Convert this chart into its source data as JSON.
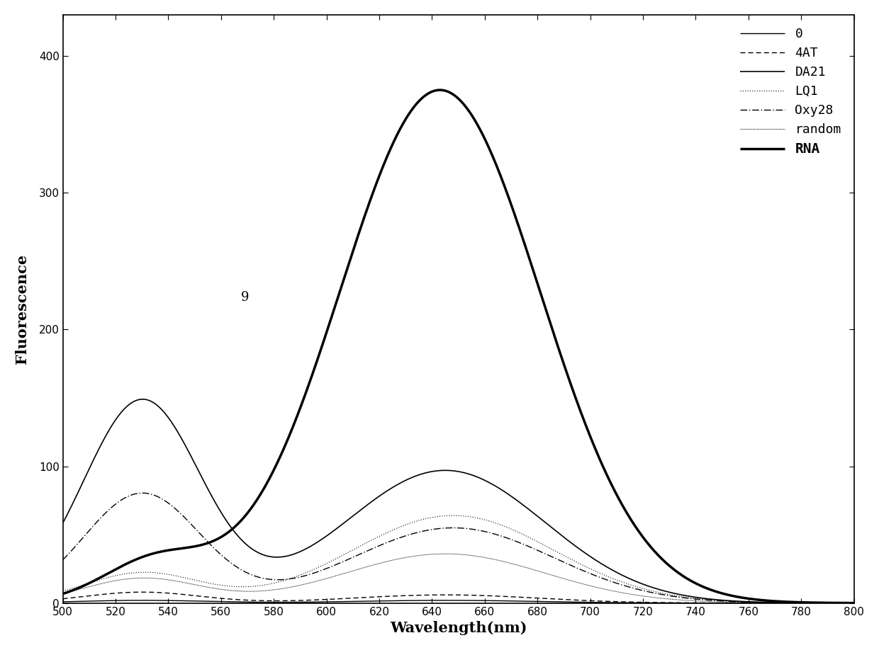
{
  "xlabel": "Wavelength(nm)",
  "ylabel": "Fluorescence",
  "xlim": [
    500,
    800
  ],
  "ylim": [
    0,
    430
  ],
  "xticks": [
    500,
    520,
    540,
    560,
    580,
    600,
    620,
    640,
    660,
    680,
    700,
    720,
    740,
    760,
    780,
    800
  ],
  "yticks": [
    0,
    100,
    200,
    300,
    400
  ],
  "peaks": {
    "0": [
      530,
      2,
      25,
      645,
      2,
      35
    ],
    "4AT": [
      530,
      8,
      22,
      645,
      6,
      35
    ],
    "DA21": [
      530,
      148,
      22,
      645,
      97,
      38
    ],
    "LQ1": [
      530,
      22,
      22,
      648,
      64,
      38
    ],
    "Oxy28": [
      530,
      80,
      22,
      648,
      55,
      38
    ],
    "random": [
      530,
      18,
      22,
      645,
      36,
      38
    ],
    "RNA": [
      535,
      30,
      20,
      643,
      375,
      38
    ]
  },
  "series": [
    {
      "label": "0",
      "lw": 1.0,
      "ls": "solid",
      "ls_tuple": [
        0,
        []
      ]
    },
    {
      "label": "4AT",
      "lw": 1.0,
      "ls": "dashed",
      "ls_tuple": [
        0,
        [
          5,
          3
        ]
      ]
    },
    {
      "label": "DA21",
      "lw": 1.2,
      "ls": "solid",
      "ls_tuple": [
        0,
        []
      ]
    },
    {
      "label": "LQ1",
      "lw": 0.8,
      "ls": "dotted",
      "ls_tuple": [
        0,
        [
          1,
          2
        ]
      ]
    },
    {
      "label": "Oxy28",
      "lw": 1.0,
      "ls": "solid",
      "ls_tuple": [
        0,
        [
          7,
          2,
          1,
          2
        ]
      ]
    },
    {
      "label": "random",
      "lw": 0.7,
      "ls": "dotted",
      "ls_tuple": [
        0,
        [
          1,
          1
        ]
      ]
    },
    {
      "label": "RNA",
      "lw": 2.5,
      "ls": "solid",
      "ls_tuple": [
        0,
        []
      ]
    }
  ],
  "legend_labels": [
    "0",
    "4AT",
    "DA21",
    "LQ1",
    "Oxy28",
    "random",
    "RNA"
  ]
}
